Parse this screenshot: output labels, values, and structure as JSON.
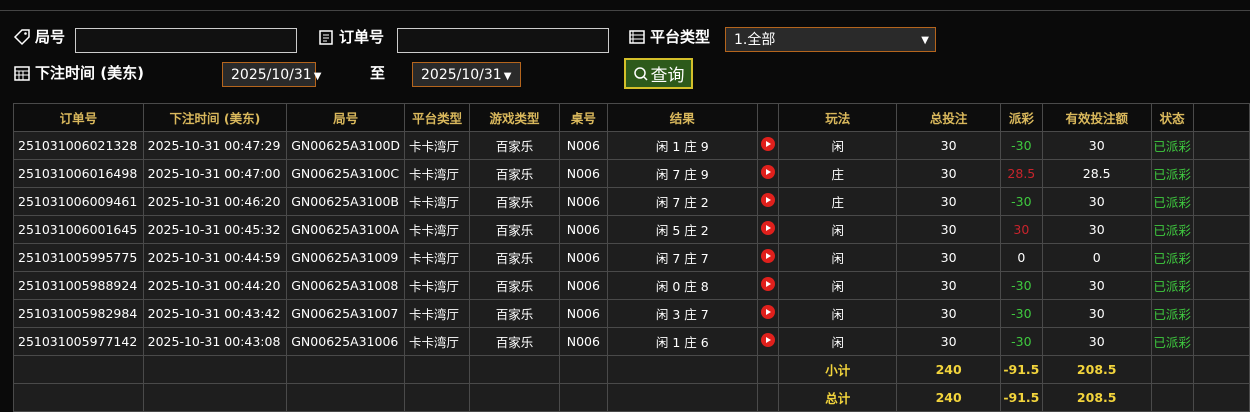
{
  "filters": {
    "round_label": "局号",
    "order_label": "订单号",
    "platform_label": "平台类型",
    "platform_value": "1.全部",
    "time_label": "下注时间 (美东)",
    "date_from": "2025/10/31",
    "to_label": "至",
    "date_to": "2025/10/31",
    "query_button": "查询"
  },
  "table": {
    "headers": [
      "订单号",
      "下注时间 (美东)",
      "局号",
      "平台类型",
      "游戏类型",
      "桌号",
      "结果",
      "玩法",
      "总投注",
      "派彩",
      "有效投注额",
      "状态"
    ],
    "rows": [
      [
        "251031006021328",
        "2025-10-31 00:47:29",
        "GN00625A3100D",
        "卡卡湾厅",
        "百家乐",
        "N006",
        "闲 1 庄 9",
        "闲",
        30,
        -30,
        30,
        "已派彩"
      ],
      [
        "251031006016498",
        "2025-10-31 00:47:00",
        "GN00625A3100C",
        "卡卡湾厅",
        "百家乐",
        "N006",
        "闲 7 庄 9",
        "庄",
        30,
        28.5,
        28.5,
        "已派彩"
      ],
      [
        "251031006009461",
        "2025-10-31 00:46:20",
        "GN00625A3100B",
        "卡卡湾厅",
        "百家乐",
        "N006",
        "闲 7 庄 2",
        "庄",
        30,
        -30,
        30,
        "已派彩"
      ],
      [
        "251031006001645",
        "2025-10-31 00:45:32",
        "GN00625A3100A",
        "卡卡湾厅",
        "百家乐",
        "N006",
        "闲 5 庄 2",
        "闲",
        30,
        30,
        30,
        "已派彩"
      ],
      [
        "251031005995775",
        "2025-10-31 00:44:59",
        "GN00625A31009",
        "卡卡湾厅",
        "百家乐",
        "N006",
        "闲 7 庄 7",
        "闲",
        30,
        0,
        0,
        "已派彩"
      ],
      [
        "251031005988924",
        "2025-10-31 00:44:20",
        "GN00625A31008",
        "卡卡湾厅",
        "百家乐",
        "N006",
        "闲 0 庄 8",
        "闲",
        30,
        -30,
        30,
        "已派彩"
      ],
      [
        "251031005982984",
        "2025-10-31 00:43:42",
        "GN00625A31007",
        "卡卡湾厅",
        "百家乐",
        "N006",
        "闲 3 庄 7",
        "闲",
        30,
        -30,
        30,
        "已派彩"
      ],
      [
        "251031005977142",
        "2025-10-31 00:43:08",
        "GN00625A31006",
        "卡卡湾厅",
        "百家乐",
        "N006",
        "闲 1 庄 6",
        "闲",
        30,
        -30,
        30,
        "已派彩"
      ]
    ],
    "summary": [
      {
        "label": "小计",
        "total_bet": 240,
        "payout": -91.5,
        "valid_bet": 208.5
      },
      {
        "label": "总计",
        "total_bet": 240,
        "payout": -91.5,
        "valid_bet": 208.5
      }
    ]
  }
}
